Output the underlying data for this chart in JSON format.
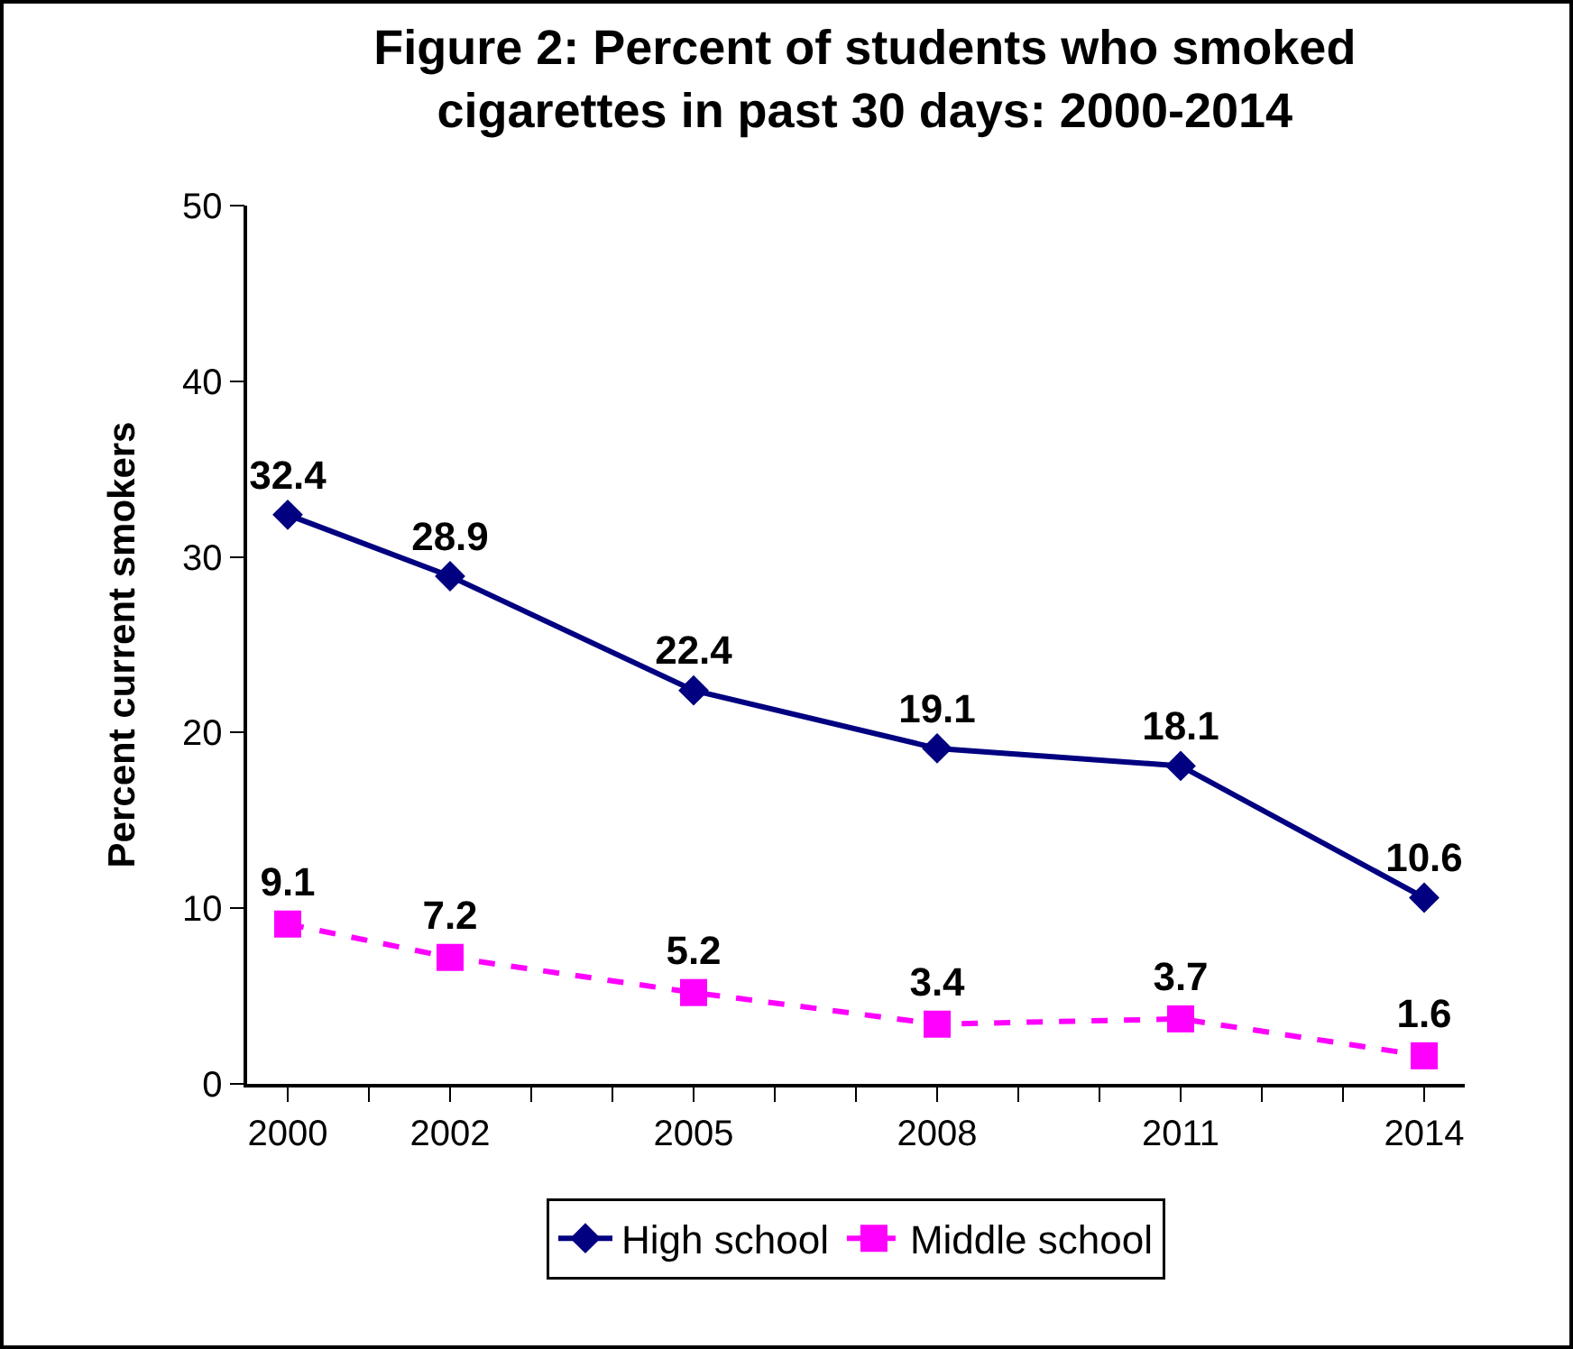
{
  "chart_data": {
    "type": "line",
    "title": "Figure 2: Percent of students who smoked cigarettes in past 30 days: 2000-2014",
    "ylabel": "Percent current smokers",
    "x": [
      2000,
      2002,
      2005,
      2008,
      2011,
      2014
    ],
    "series": [
      {
        "name": "High school",
        "color": "#000080",
        "marker": "diamond",
        "line_style": "solid",
        "values": [
          32.4,
          28.9,
          22.4,
          19.1,
          18.1,
          10.6
        ]
      },
      {
        "name": "Middle school",
        "color": "#ff00ff",
        "marker": "square",
        "line_style": "dashed",
        "values": [
          9.1,
          7.2,
          5.2,
          3.4,
          3.7,
          1.6
        ]
      }
    ],
    "xlim": [
      1999.5,
      2014.5
    ],
    "xticks": [
      2000,
      {
        "value": 2001,
        "label": null
      },
      2002,
      {
        "value": 2003,
        "label": null
      },
      {
        "value": 2004,
        "label": null
      },
      2005,
      {
        "value": 2006,
        "label": null
      },
      {
        "value": 2007,
        "label": null
      },
      2008,
      {
        "value": 2009,
        "label": null
      },
      {
        "value": 2010,
        "label": null
      },
      2011,
      {
        "value": 2012,
        "label": null
      },
      {
        "value": 2013,
        "label": null
      },
      2014
    ],
    "ylim": [
      0,
      50
    ],
    "yticks": [
      0,
      10,
      20,
      30,
      40,
      50
    ],
    "grid": false,
    "legend": "bottom",
    "data_labels": true
  }
}
